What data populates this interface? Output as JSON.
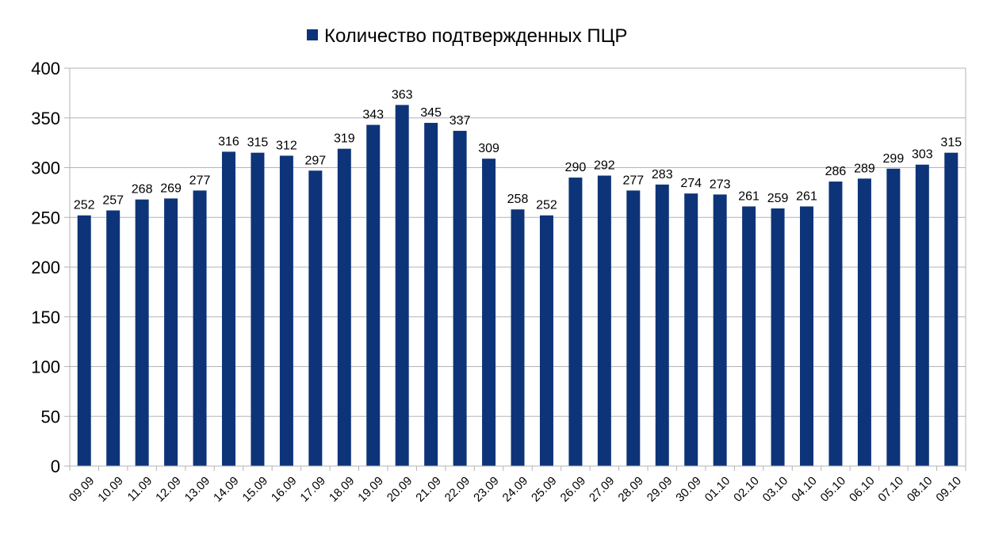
{
  "chart_data": {
    "type": "bar",
    "title": "",
    "xlabel": "",
    "ylabel": "",
    "ylim": [
      0,
      400
    ],
    "yticks": [
      0,
      50,
      100,
      150,
      200,
      250,
      300,
      350,
      400
    ],
    "grid": true,
    "legend_position": "top-center",
    "categories": [
      "09.09",
      "10.09",
      "11.09",
      "12.09",
      "13.09",
      "14.09",
      "15.09",
      "16.09",
      "17.09",
      "18.09",
      "19.09",
      "20.09",
      "21.09",
      "22.09",
      "23.09",
      "24.09",
      "25.09",
      "26.09",
      "27.09",
      "28.09",
      "29.09",
      "30.09",
      "01.10",
      "02.10",
      "03.10",
      "04.10",
      "05.10",
      "06.10",
      "07.10",
      "08.10",
      "09.10"
    ],
    "series": [
      {
        "name": "Количество подтвержденных ПЦР",
        "color": "#0d3479",
        "values": [
          252,
          257,
          268,
          269,
          277,
          316,
          315,
          312,
          297,
          319,
          343,
          363,
          345,
          337,
          309,
          258,
          252,
          290,
          292,
          277,
          283,
          274,
          273,
          261,
          259,
          261,
          286,
          289,
          299,
          303,
          315
        ]
      }
    ]
  }
}
